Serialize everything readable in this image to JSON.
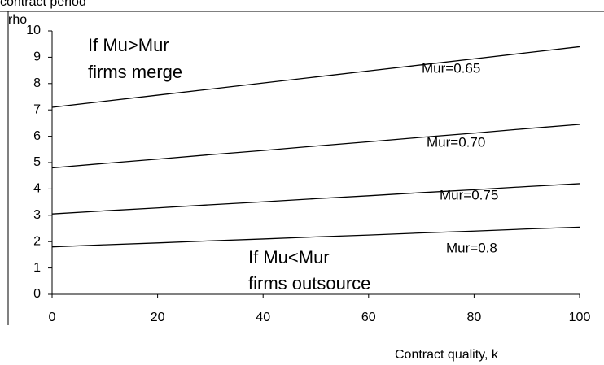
{
  "chart_data": {
    "type": "line",
    "title": "contract period",
    "ylabel": "rho",
    "xlabel": "Contract quality, k",
    "x": [
      0,
      10,
      20,
      30,
      40,
      50,
      60,
      70,
      80,
      90,
      100
    ],
    "series": [
      {
        "name": "Mur=0.65",
        "color": "#000000",
        "values": [
          7.1,
          7.33,
          7.56,
          7.79,
          8.02,
          8.25,
          8.48,
          8.71,
          8.94,
          9.17,
          9.4
        ]
      },
      {
        "name": "Mur=0.70",
        "color": "#000000",
        "values": [
          4.8,
          4.97,
          5.13,
          5.3,
          5.46,
          5.63,
          5.79,
          5.96,
          6.12,
          6.29,
          6.45
        ]
      },
      {
        "name": "Mur=0.75",
        "color": "#000000",
        "values": [
          3.05,
          3.17,
          3.28,
          3.4,
          3.51,
          3.63,
          3.74,
          3.86,
          3.97,
          4.09,
          4.2
        ]
      },
      {
        "name": "Mur=0.8",
        "color": "#000000",
        "values": [
          1.8,
          1.88,
          1.95,
          2.03,
          2.1,
          2.18,
          2.25,
          2.33,
          2.4,
          2.48,
          2.55
        ]
      }
    ],
    "annotations": [
      "If Mu>Mur",
      "firms merge",
      "If Mu<Mur",
      "firms outsource"
    ],
    "xlim": [
      0,
      100
    ],
    "xticks": [
      0,
      20,
      40,
      60,
      80,
      100
    ],
    "ylim": [
      0,
      10
    ],
    "yticks": [
      0,
      1,
      2,
      3,
      4,
      5,
      6,
      7,
      8,
      9,
      10
    ]
  }
}
